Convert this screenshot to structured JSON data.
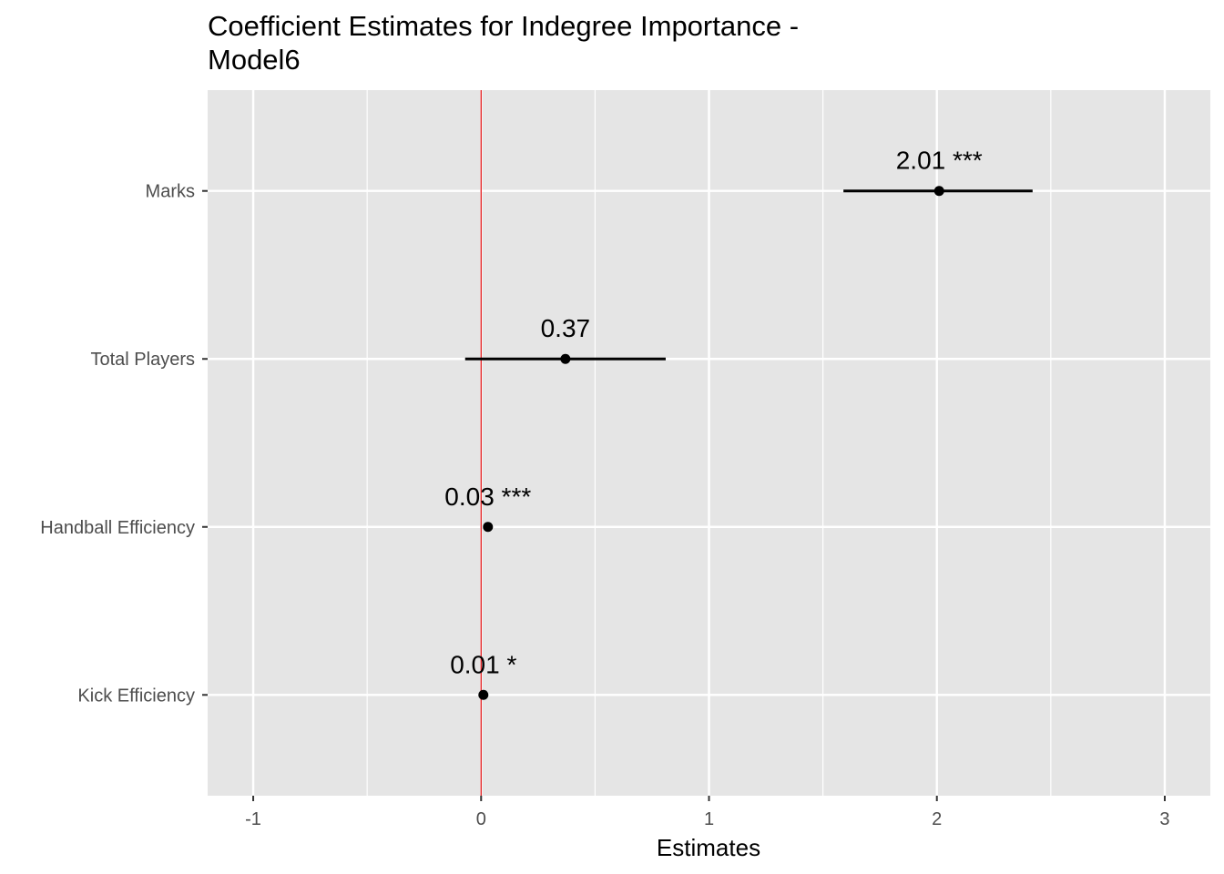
{
  "chart_data": {
    "type": "forest",
    "title_lines": [
      "Coefficient Estimates for Indegree Importance -",
      "Model6"
    ],
    "xlabel": "Estimates",
    "ylabel": "",
    "xlim": [
      -1.2,
      3.2
    ],
    "x_ticks": [
      -1,
      0,
      1,
      2,
      3
    ],
    "x_tick_labels": [
      "-1",
      "0",
      "1",
      "2",
      "3"
    ],
    "reference_line": {
      "x": 0,
      "color": "#e41a1c"
    },
    "grid": true,
    "panel_background": "#e5e5e5",
    "point_color": "#000000",
    "terms": [
      {
        "label": "Marks",
        "estimate": 2.01,
        "ci": [
          1.59,
          2.42
        ],
        "annotation": "2.01 ***"
      },
      {
        "label": "Total Players",
        "estimate": 0.37,
        "ci": [
          -0.07,
          0.81
        ],
        "annotation": "0.37"
      },
      {
        "label": "Handball Efficiency",
        "estimate": 0.03,
        "ci": [
          0.02,
          0.04
        ],
        "annotation": "0.03 ***"
      },
      {
        "label": "Kick Efficiency",
        "estimate": 0.01,
        "ci": [
          0.005,
          0.015
        ],
        "annotation": "0.01 *"
      }
    ]
  }
}
